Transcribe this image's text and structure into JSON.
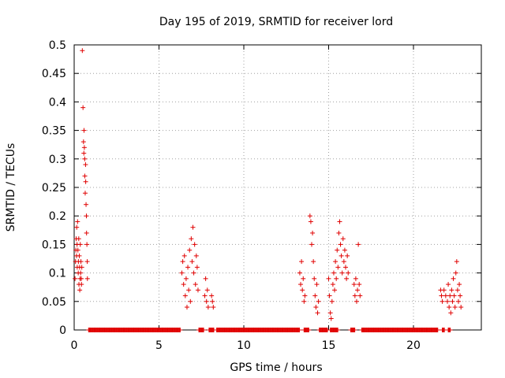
{
  "chart_data": {
    "type": "scatter",
    "title": "Day 195 of 2019, SRMTID for receiver lord",
    "xlabel": "GPS time / hours",
    "ylabel": "SRMTID / TECUs",
    "xlim": [
      0,
      24
    ],
    "ylim": [
      0,
      0.5
    ],
    "xticks": [
      0,
      5,
      10,
      15,
      20
    ],
    "yticks": [
      0,
      0.05,
      0.1,
      0.15,
      0.2,
      0.25,
      0.3,
      0.35,
      0.4,
      0.45,
      0.5
    ],
    "marker": "+",
    "color": "#e00000",
    "series": [
      {
        "name": "SRMTID",
        "points": [
          [
            0.05,
            0.09
          ],
          [
            0.08,
            0.12
          ],
          [
            0.1,
            0.14
          ],
          [
            0.12,
            0.16
          ],
          [
            0.14,
            0.13
          ],
          [
            0.15,
            0.18
          ],
          [
            0.17,
            0.15
          ],
          [
            0.18,
            0.11
          ],
          [
            0.2,
            0.19
          ],
          [
            0.22,
            0.14
          ],
          [
            0.24,
            0.1
          ],
          [
            0.25,
            0.12
          ],
          [
            0.27,
            0.16
          ],
          [
            0.28,
            0.08
          ],
          [
            0.3,
            0.13
          ],
          [
            0.32,
            0.11
          ],
          [
            0.33,
            0.07
          ],
          [
            0.35,
            0.09
          ],
          [
            0.36,
            0.15
          ],
          [
            0.38,
            0.1
          ],
          [
            0.4,
            0.12
          ],
          [
            0.42,
            0.09
          ],
          [
            0.43,
            0.08
          ],
          [
            0.45,
            0.11
          ],
          [
            0.48,
            0.49
          ],
          [
            0.52,
            0.39
          ],
          [
            0.55,
            0.33
          ],
          [
            0.57,
            0.31
          ],
          [
            0.58,
            0.35
          ],
          [
            0.6,
            0.32
          ],
          [
            0.62,
            0.3
          ],
          [
            0.63,
            0.27
          ],
          [
            0.65,
            0.24
          ],
          [
            0.67,
            0.29
          ],
          [
            0.68,
            0.26
          ],
          [
            0.7,
            0.22
          ],
          [
            0.72,
            0.2
          ],
          [
            0.73,
            0.17
          ],
          [
            0.75,
            0.15
          ],
          [
            0.77,
            0.12
          ],
          [
            0.78,
            0.09
          ],
          [
            6.35,
            0.1
          ],
          [
            6.4,
            0.12
          ],
          [
            6.45,
            0.08
          ],
          [
            6.5,
            0.13
          ],
          [
            6.55,
            0.06
          ],
          [
            6.6,
            0.09
          ],
          [
            6.65,
            0.04
          ],
          [
            6.7,
            0.11
          ],
          [
            6.75,
            0.07
          ],
          [
            6.8,
            0.14
          ],
          [
            6.85,
            0.05
          ],
          [
            6.9,
            0.16
          ],
          [
            6.95,
            0.12
          ],
          [
            7.0,
            0.18
          ],
          [
            7.05,
            0.1
          ],
          [
            7.1,
            0.15
          ],
          [
            7.15,
            0.08
          ],
          [
            7.2,
            0.13
          ],
          [
            7.25,
            0.11
          ],
          [
            7.3,
            0.07
          ],
          [
            7.7,
            0.06
          ],
          [
            7.75,
            0.09
          ],
          [
            7.8,
            0.05
          ],
          [
            7.85,
            0.07
          ],
          [
            7.9,
            0.04
          ],
          [
            8.1,
            0.06
          ],
          [
            8.15,
            0.05
          ],
          [
            8.2,
            0.04
          ],
          [
            13.3,
            0.1
          ],
          [
            13.35,
            0.08
          ],
          [
            13.4,
            0.12
          ],
          [
            13.45,
            0.07
          ],
          [
            13.5,
            0.09
          ],
          [
            13.55,
            0.05
          ],
          [
            13.6,
            0.06
          ],
          [
            13.9,
            0.2
          ],
          [
            13.95,
            0.19
          ],
          [
            14.0,
            0.15
          ],
          [
            14.05,
            0.17
          ],
          [
            14.1,
            0.12
          ],
          [
            14.15,
            0.09
          ],
          [
            14.2,
            0.06
          ],
          [
            14.25,
            0.04
          ],
          [
            14.3,
            0.08
          ],
          [
            14.35,
            0.03
          ],
          [
            14.4,
            0.05
          ],
          [
            15.0,
            0.09
          ],
          [
            15.05,
            0.06
          ],
          [
            15.1,
            0.03
          ],
          [
            15.15,
            0.02
          ],
          [
            15.2,
            0.05
          ],
          [
            15.25,
            0.08
          ],
          [
            15.3,
            0.1
          ],
          [
            15.35,
            0.07
          ],
          [
            15.4,
            0.12
          ],
          [
            15.45,
            0.09
          ],
          [
            15.5,
            0.14
          ],
          [
            15.55,
            0.11
          ],
          [
            15.6,
            0.17
          ],
          [
            15.65,
            0.19
          ],
          [
            15.7,
            0.15
          ],
          [
            15.75,
            0.13
          ],
          [
            15.8,
            0.1
          ],
          [
            15.85,
            0.16
          ],
          [
            15.9,
            0.12
          ],
          [
            15.95,
            0.14
          ],
          [
            16.0,
            0.11
          ],
          [
            16.05,
            0.09
          ],
          [
            16.1,
            0.13
          ],
          [
            16.15,
            0.1
          ],
          [
            16.5,
            0.08
          ],
          [
            16.55,
            0.06
          ],
          [
            16.6,
            0.09
          ],
          [
            16.65,
            0.05
          ],
          [
            16.7,
            0.07
          ],
          [
            16.75,
            0.15
          ],
          [
            16.8,
            0.08
          ],
          [
            16.85,
            0.06
          ],
          [
            21.6,
            0.07
          ],
          [
            21.65,
            0.06
          ],
          [
            21.7,
            0.05
          ],
          [
            21.8,
            0.07
          ],
          [
            21.9,
            0.06
          ],
          [
            22.0,
            0.05
          ],
          [
            22.05,
            0.08
          ],
          [
            22.1,
            0.04
          ],
          [
            22.15,
            0.06
          ],
          [
            22.2,
            0.03
          ],
          [
            22.25,
            0.07
          ],
          [
            22.3,
            0.05
          ],
          [
            22.35,
            0.09
          ],
          [
            22.4,
            0.06
          ],
          [
            22.45,
            0.04
          ],
          [
            22.5,
            0.1
          ],
          [
            22.55,
            0.12
          ],
          [
            22.6,
            0.07
          ],
          [
            22.65,
            0.05
          ],
          [
            22.7,
            0.08
          ],
          [
            22.75,
            0.06
          ],
          [
            22.8,
            0.04
          ]
        ]
      }
    ],
    "zero_segments": [
      [
        0.85,
        6.25
      ],
      [
        7.35,
        7.65
      ],
      [
        7.95,
        8.25
      ],
      [
        8.4,
        13.3
      ],
      [
        13.55,
        13.85
      ],
      [
        14.45,
        14.95
      ],
      [
        15.1,
        15.55
      ],
      [
        16.3,
        16.55
      ],
      [
        16.95,
        21.45
      ],
      [
        21.7,
        21.85
      ],
      [
        22.05,
        22.2
      ]
    ]
  }
}
